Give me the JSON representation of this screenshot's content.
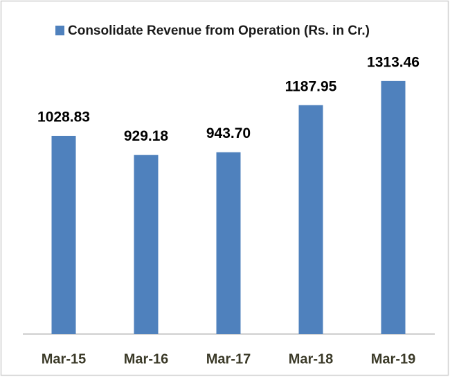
{
  "chart_data": {
    "type": "bar",
    "categories": [
      "Mar-15",
      "Mar-16",
      "Mar-17",
      "Mar-18",
      "Mar-19"
    ],
    "series": [
      {
        "name": "Consolidate Revenue from Operation  (Rs. in Cr.)",
        "color": "#4f81bd",
        "values": [
          1028.83,
          929.18,
          943.7,
          1187.95,
          1313.46
        ],
        "value_labels": [
          "1028.83",
          "929.18",
          "943.70",
          "1187.95",
          "1313.46"
        ]
      }
    ],
    "legend": "top"
  }
}
